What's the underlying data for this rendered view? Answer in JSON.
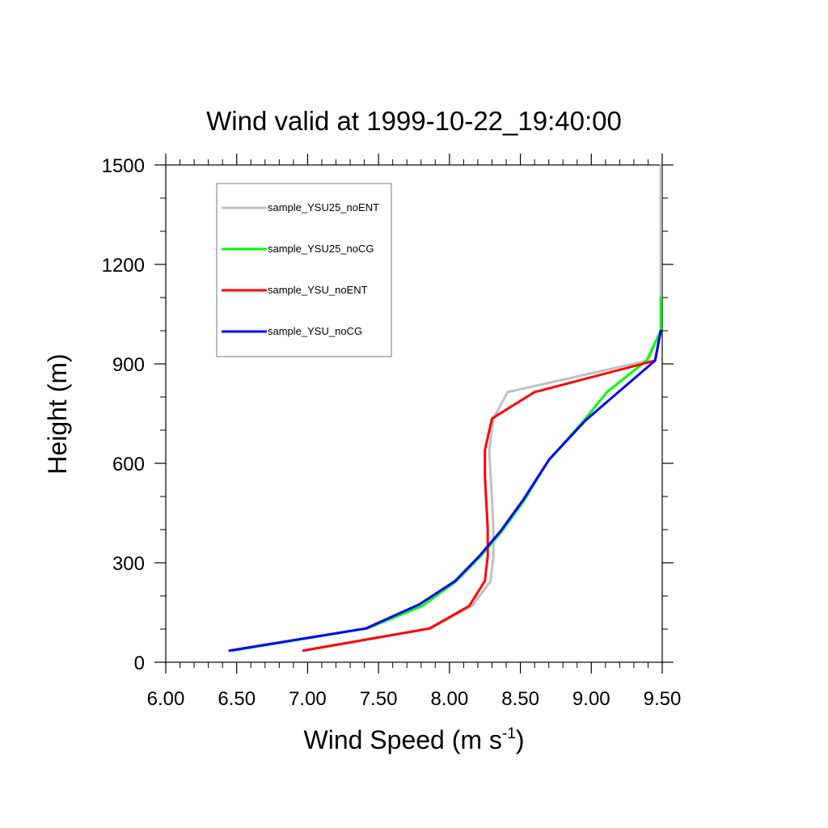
{
  "chart_data": {
    "type": "line",
    "title": "Wind valid at 1999-10-22_19:40:00",
    "xlabel": "Wind Speed (m s",
    "xlabel_sup": "-1",
    "xlabel_close": ")",
    "ylabel": "Height (m)",
    "xlim": [
      6.0,
      9.5
    ],
    "ylim": [
      0,
      1500
    ],
    "xticks": [
      6.0,
      6.5,
      7.0,
      7.5,
      8.0,
      8.5,
      9.0,
      9.5
    ],
    "xtick_labels": [
      "6.00",
      "6.50",
      "7.00",
      "7.50",
      "8.00",
      "8.50",
      "9.00",
      "9.50"
    ],
    "yticks": [
      0,
      300,
      600,
      900,
      1200,
      1500
    ],
    "ytick_labels": [
      "0",
      "300",
      "600",
      "900",
      "1200",
      "1500"
    ],
    "grid": false,
    "legend_position": "top-left",
    "series": [
      {
        "name": "sample_YSU25_noENT",
        "color": "#c0c0c0",
        "points": [
          [
            6.97,
            35
          ],
          [
            7.87,
            102
          ],
          [
            8.16,
            170
          ],
          [
            8.29,
            245
          ],
          [
            8.31,
            320
          ],
          [
            8.31,
            395
          ],
          [
            8.3,
            490
          ],
          [
            8.29,
            565
          ],
          [
            8.28,
            640
          ],
          [
            8.31,
            735
          ],
          [
            8.41,
            815
          ],
          [
            9.4,
            910
          ],
          [
            9.49,
            1000
          ],
          [
            9.49,
            1100
          ],
          [
            9.49,
            1300
          ],
          [
            9.49,
            1500
          ]
        ]
      },
      {
        "name": "sample_YSU25_noCG",
        "color": "#00ff00",
        "points": [
          [
            6.47,
            35
          ],
          [
            7.42,
            102
          ],
          [
            7.81,
            170
          ],
          [
            8.05,
            245
          ],
          [
            8.22,
            320
          ],
          [
            8.37,
            395
          ],
          [
            8.53,
            490
          ],
          [
            8.7,
            610
          ],
          [
            8.95,
            730
          ],
          [
            9.11,
            815
          ],
          [
            9.39,
            910
          ],
          [
            9.49,
            1000
          ],
          [
            9.49,
            1100
          ]
        ]
      },
      {
        "name": "sample_YSU_noENT",
        "color": "#ff0000",
        "points": [
          [
            6.97,
            35
          ],
          [
            7.86,
            102
          ],
          [
            8.14,
            170
          ],
          [
            8.25,
            245
          ],
          [
            8.27,
            320
          ],
          [
            8.27,
            400
          ],
          [
            8.26,
            480
          ],
          [
            8.25,
            560
          ],
          [
            8.25,
            640
          ],
          [
            8.3,
            735
          ],
          [
            8.6,
            815
          ],
          [
            9.45,
            910
          ],
          [
            9.49,
            1000
          ]
        ]
      },
      {
        "name": "sample_YSU_noCG",
        "color": "#0000ff",
        "points": [
          [
            6.45,
            35
          ],
          [
            7.41,
            102
          ],
          [
            7.79,
            175
          ],
          [
            8.04,
            245
          ],
          [
            8.21,
            320
          ],
          [
            8.36,
            395
          ],
          [
            8.52,
            490
          ],
          [
            8.7,
            610
          ],
          [
            8.96,
            730
          ],
          [
            9.45,
            910
          ],
          [
            9.49,
            1000
          ]
        ]
      }
    ]
  }
}
